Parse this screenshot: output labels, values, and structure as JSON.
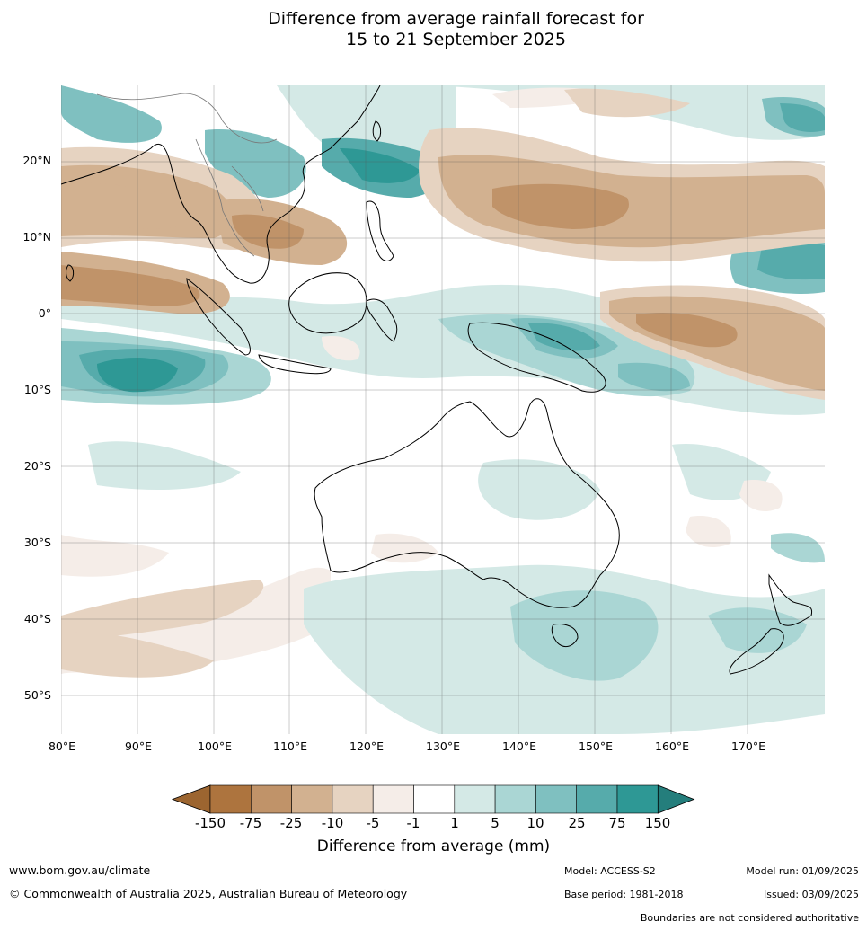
{
  "title": {
    "line1": "Difference from average rainfall forecast for",
    "line2": "15 to 21 September 2025"
  },
  "map": {
    "region": "Indian Ocean, Australia, Maritime Continent and western Pacific",
    "lat_labels": [
      "20°N",
      "10°N",
      "0°",
      "10°S",
      "20°S",
      "30°S",
      "40°S",
      "50°S"
    ],
    "lon_labels": [
      "80°E",
      "90°E",
      "100°E",
      "110°E",
      "120°E",
      "130°E",
      "140°E",
      "150°E",
      "160°E",
      "170°E"
    ]
  },
  "legend": {
    "title": "Difference from average (mm)",
    "ticks": [
      "-150",
      "-75",
      "-25",
      "-10",
      "-5",
      "-1",
      "1",
      "5",
      "10",
      "25",
      "75",
      "150"
    ],
    "colors": [
      "#9c6530",
      "#ad743e",
      "#c09369",
      "#d2b190",
      "#e6d3c1",
      "#f5ede8",
      "#ffffff",
      "#d4e9e6",
      "#aad6d4",
      "#7fc0c0",
      "#56abab",
      "#2e9895",
      "#247e7c"
    ]
  },
  "footer": {
    "url": "www.bom.gov.au/climate",
    "copyright": "© Commonwealth of Australia 2025, Australian Bureau of Meteorology",
    "model": "Model: ACCESS-S2",
    "base_period": "Base period: 1981-2018",
    "model_run": "Model run: 01/09/2025",
    "issued": "Issued: 03/09/2025",
    "disclaimer": "Boundaries are not considered authoritative"
  }
}
